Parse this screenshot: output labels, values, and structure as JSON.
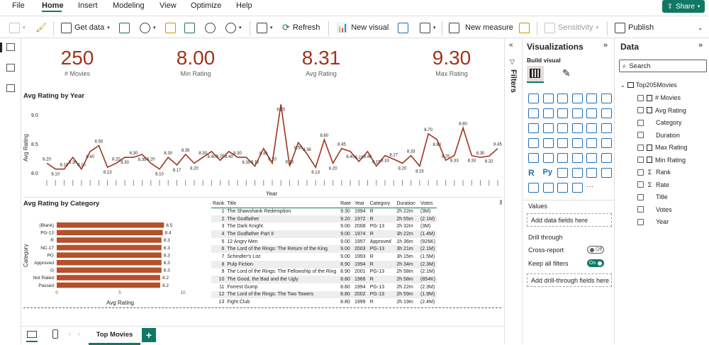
{
  "menubar": {
    "items": [
      "File",
      "Home",
      "Insert",
      "Modeling",
      "View",
      "Optimize",
      "Help"
    ],
    "share_label": "Share"
  },
  "ribbon": {
    "get_data": "Get data",
    "refresh": "Refresh",
    "new_visual": "New visual",
    "new_measure": "New measure",
    "sensitivity": "Sensitivity",
    "publish": "Publish"
  },
  "kpis": [
    {
      "value": "250",
      "label": "# Movies"
    },
    {
      "value": "8.00",
      "label": "Min Rating"
    },
    {
      "value": "8.31",
      "label": "Avg Rating"
    },
    {
      "value": "9.30",
      "label": "Max Rating"
    }
  ],
  "line_chart": {
    "title": "Avg Rating by Year",
    "ylabel": "Avg Rating",
    "xlabel": "Year",
    "y_ticks": [
      "9.0",
      "8.5",
      "8.0"
    ]
  },
  "bar_chart": {
    "title": "Avg Rating by Category",
    "ylabel": "Category",
    "xlabel": "Avg Rating",
    "x_ticks": [
      "0",
      "5",
      "10"
    ]
  },
  "chart_data": [
    {
      "type": "line",
      "title": "Avg Rating by Year",
      "xlabel": "Year",
      "ylabel": "Avg Rating",
      "ylim": [
        8.0,
        9.0
      ],
      "grid": false,
      "values": [
        8.2,
        8.1,
        8.1,
        8.3,
        8.1,
        8.4,
        8.5,
        8.13,
        8.2,
        8.3,
        8.3,
        8.35,
        8.2,
        8.1,
        8.3,
        8.17,
        8.35,
        8.2,
        8.3,
        8.4,
        8.25,
        8.4,
        8.3,
        8.3,
        8.15,
        8.45,
        8.2,
        9.2,
        8.15,
        8.55,
        8.36,
        8.13,
        8.6,
        8.2,
        8.45,
        8.4,
        8.23,
        8.4,
        8.15,
        8.33,
        8.27,
        8.2,
        8.33,
        8.15,
        8.7,
        8.6,
        8.25,
        8.33,
        8.8,
        8.33,
        8.3,
        8.32,
        8.45
      ]
    },
    {
      "type": "bar",
      "title": "Avg Rating by Category",
      "xlabel": "Avg Rating",
      "ylabel": "Category",
      "xlim": [
        0,
        10
      ],
      "categories": [
        "(Blank)",
        "PG-13",
        "R",
        "NC-17",
        "PG",
        "Approved",
        "G",
        "Not Rated",
        "Passed"
      ],
      "values": [
        8.5,
        8.4,
        8.3,
        8.3,
        8.3,
        8.3,
        8.3,
        8.2,
        8.2
      ]
    }
  ],
  "table": {
    "headers": [
      "Rank",
      "Title",
      "Rate",
      "Year",
      "Category",
      "Duration",
      "Votes"
    ],
    "rows": [
      [
        "1",
        "The Shawshank Redemption",
        "9.30",
        "1994",
        "R",
        "2h 22m",
        "(3M)"
      ],
      [
        "2",
        "The Godfather",
        "9.20",
        "1972",
        "R",
        "2h 55m",
        "(2.1M)"
      ],
      [
        "3",
        "The Dark Knight",
        "9.00",
        "2008",
        "PG-13",
        "2h 32m",
        "(3M)"
      ],
      [
        "4",
        "The Godfather Part II",
        "9.00",
        "1974",
        "R",
        "3h 22m",
        "(1.4M)"
      ],
      [
        "5",
        "12 Angry Men",
        "9.00",
        "1957",
        "Approved",
        "1h 36m",
        "(926K)"
      ],
      [
        "6",
        "The Lord of the Rings: The Return of the King",
        "9.00",
        "2003",
        "PG-13",
        "3h 21m",
        "(2.1M)"
      ],
      [
        "7",
        "Schindler's List",
        "9.00",
        "1993",
        "R",
        "3h 15m",
        "(1.5M)"
      ],
      [
        "8",
        "Pulp Fiction",
        "8.90",
        "1994",
        "R",
        "2h 34m",
        "(2.3M)"
      ],
      [
        "9",
        "The Lord of the Rings: The Fellowship of the Ring",
        "8.90",
        "2001",
        "PG-13",
        "2h 58m",
        "(2.1M)"
      ],
      [
        "10",
        "The Good, the Bad and the Ugly",
        "8.80",
        "1966",
        "R",
        "2h 58m",
        "(854K)"
      ],
      [
        "11",
        "Forrest Gump",
        "8.80",
        "1994",
        "PG-13",
        "2h 22m",
        "(2.3M)"
      ],
      [
        "12",
        "The Lord of the Rings: The Two Towers",
        "8.80",
        "2002",
        "PG-13",
        "2h 59m",
        "(1.9M)"
      ],
      [
        "13",
        "Fight Club",
        "8.80",
        "1999",
        "R",
        "2h 19m",
        "(2.4M)"
      ]
    ]
  },
  "page_tabs": {
    "active": "Top Movies",
    "add": "+"
  },
  "filters_pane": {
    "label": "Filters"
  },
  "viz_pane": {
    "title": "Visualizations",
    "build_visual": "Build visual",
    "values_label": "Values",
    "values_drop": "Add data fields here",
    "drill_through": "Drill through",
    "cross_report": "Cross-report",
    "cross_report_state": "Off",
    "keep_filters": "Keep all filters",
    "keep_filters_state": "On",
    "drill_drop": "Add drill-through fields here"
  },
  "data_pane": {
    "title": "Data",
    "search_placeholder": "Search",
    "table_name": "Top205Movies",
    "fields": [
      {
        "name": "# Movies",
        "icon": "calculator-icon"
      },
      {
        "name": "Avg Rating",
        "icon": "calculator-icon"
      },
      {
        "name": "Category",
        "icon": ""
      },
      {
        "name": "Duration",
        "icon": ""
      },
      {
        "name": "Max Rating",
        "icon": "calculator-icon"
      },
      {
        "name": "Min Rating",
        "icon": "calculator-icon"
      },
      {
        "name": "Rank",
        "icon": "sigma-icon"
      },
      {
        "name": "Rate",
        "icon": "sigma-icon"
      },
      {
        "name": "Title",
        "icon": ""
      },
      {
        "name": "Votes",
        "icon": ""
      },
      {
        "name": "Year",
        "icon": ""
      }
    ]
  },
  "colors": {
    "accent": "#117865",
    "series": "#a0351b",
    "bar": "#b5502a"
  }
}
